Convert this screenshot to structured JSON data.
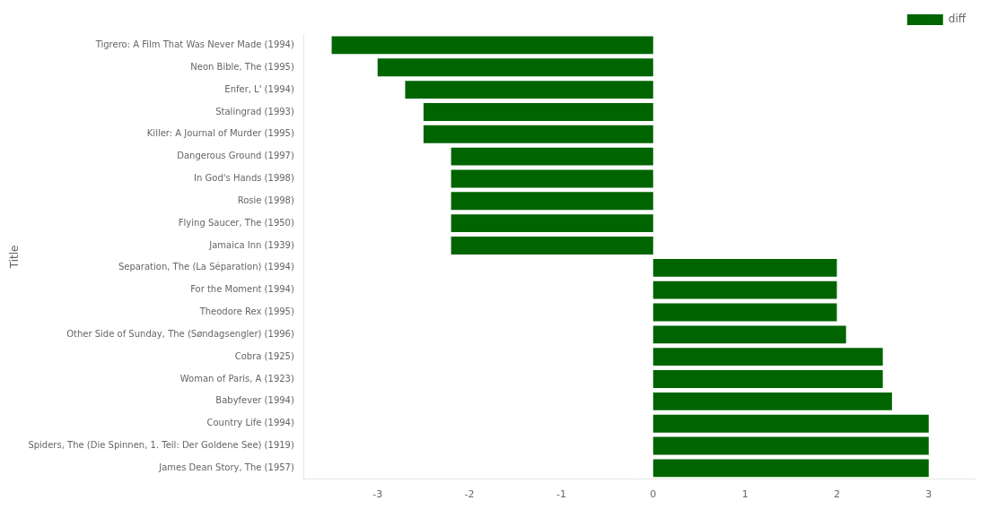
{
  "chart_data": {
    "type": "bar",
    "orientation": "horizontal",
    "ylabel": "Title",
    "categories": [
      "James Dean Story, The (1957)",
      "Spiders, The (Die Spinnen, 1. Teil: Der Goldene See) (1919)",
      "Country Life (1994)",
      "Babyfever (1994)",
      "Woman of Paris, A (1923)",
      "Cobra (1925)",
      "Other Side of Sunday, The (Søndagsengler) (1996)",
      "Theodore Rex (1995)",
      "For the Moment (1994)",
      "Separation, The (La Séparation) (1994)",
      "Jamaica Inn (1939)",
      "Flying Saucer, The (1950)",
      "Rosie (1998)",
      "In God's Hands (1998)",
      "Dangerous Ground (1997)",
      "Killer: A Journal of Murder (1995)",
      "Stalingrad (1993)",
      "Enfer, L' (1994)",
      "Neon Bible, The (1995)",
      "Tigrero: A Film That Was Never Made (1994)"
    ],
    "series": [
      {
        "name": "diff",
        "color": "#006400",
        "values": [
          3.0,
          3.0,
          3.0,
          2.6,
          2.5,
          2.5,
          2.1,
          2.0,
          2.0,
          2.0,
          -2.2,
          -2.2,
          -2.2,
          -2.2,
          -2.2,
          -2.5,
          -2.5,
          -2.7,
          -3.0,
          -3.5
        ]
      }
    ],
    "xlim": [
      -3.8,
      3.5
    ],
    "xticks": [
      -3,
      -2,
      -1,
      0,
      1,
      2,
      3
    ],
    "grid": false,
    "legend": "upper right"
  }
}
